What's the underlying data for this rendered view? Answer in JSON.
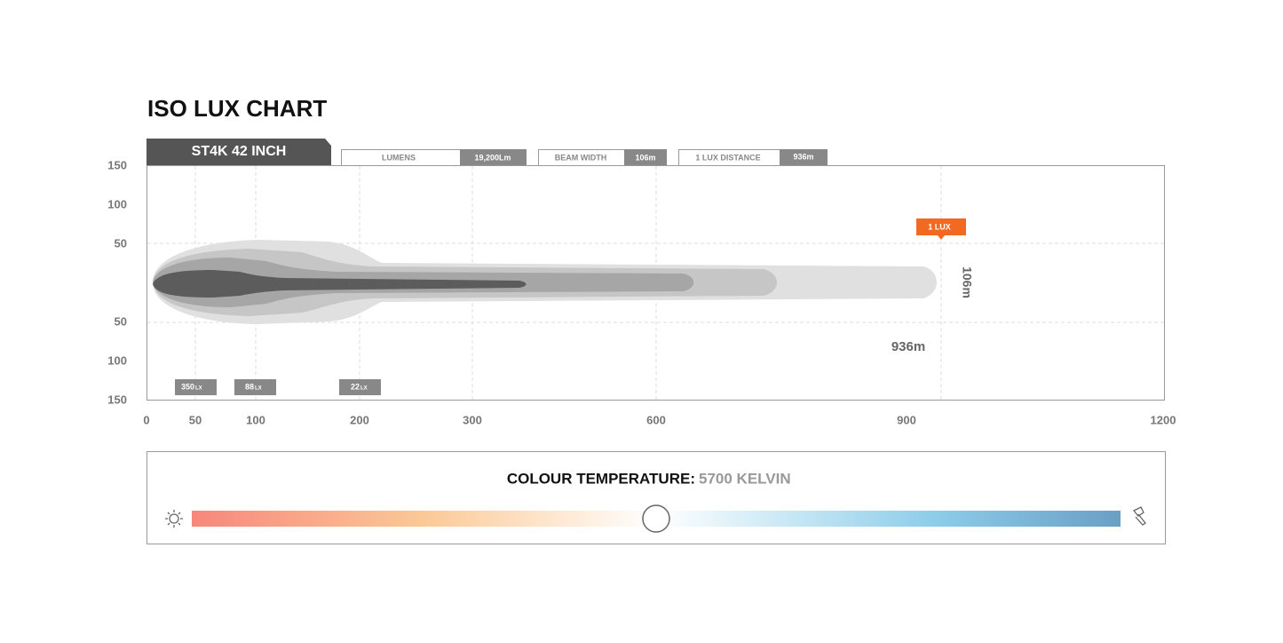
{
  "header": {
    "title": "ISO LUX CHART"
  },
  "product": {
    "label": "ST4K 42 INCH"
  },
  "specs": [
    {
      "label": "LUMENS",
      "value": "19,200Lm"
    },
    {
      "label": "BEAM WIDTH",
      "value": "106m"
    },
    {
      "label": "1 LUX DISTANCE",
      "value": "936m"
    }
  ],
  "chart": {
    "y_ticks": [
      "150",
      "100",
      "50",
      "50",
      "100",
      "150"
    ],
    "x_ticks": [
      "0",
      "50",
      "100",
      "200",
      "300",
      "600",
      "900",
      "1200"
    ],
    "lux_labels": [
      {
        "value": "350",
        "unit": "LX"
      },
      {
        "value": "88",
        "unit": "LX"
      },
      {
        "value": "22",
        "unit": "LX"
      }
    ],
    "marker": "1 LUX",
    "width_label": "106m",
    "distance_label": "936m"
  },
  "colour_temperature": {
    "label": "COLOUR TEMPERATURE:",
    "value": "5700 KELVIN"
  }
}
